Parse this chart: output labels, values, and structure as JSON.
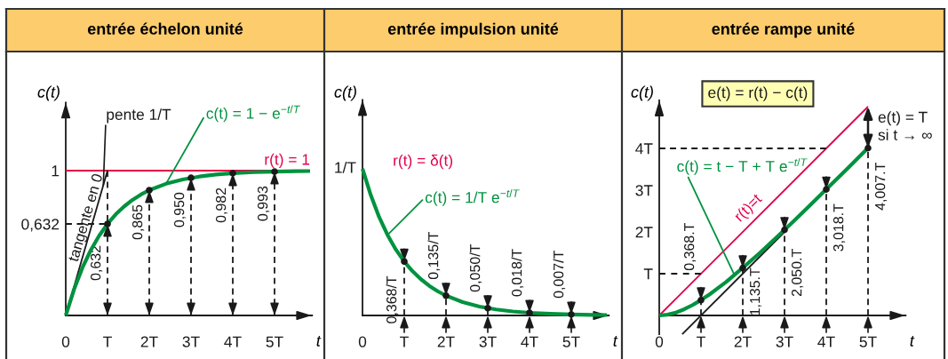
{
  "chart_data": [
    {
      "type": "line",
      "title": "entrée échelon unité",
      "xlabel": "t",
      "ylabel": "c(t)",
      "xlim": [
        0,
        5.9
      ],
      "ylim": [
        0,
        1.47
      ],
      "xticks": [
        0,
        {
          "value": 1,
          "label": "T"
        },
        {
          "value": 2,
          "label": "2T"
        },
        {
          "value": 3,
          "label": "3T"
        },
        {
          "value": 4,
          "label": "4T"
        },
        {
          "value": 5,
          "label": "5T"
        }
      ],
      "yticks": [
        {
          "value": 0.632,
          "label": "0,632"
        },
        1
      ],
      "series": [
        {
          "name": "c(t) = 1 − e$^{−t/T}$",
          "color": "#00923f",
          "x": [
            0,
            0.2,
            0.4,
            0.6,
            0.8,
            1,
            1.2,
            1.4,
            1.6,
            1.8,
            2,
            2.4,
            2.8,
            3.2,
            3.6,
            4,
            4.5,
            5,
            5.5,
            5.85
          ],
          "values": [
            0,
            0.181,
            0.33,
            0.451,
            0.551,
            0.632,
            0.699,
            0.753,
            0.798,
            0.835,
            0.865,
            0.909,
            0.939,
            0.959,
            0.973,
            0.982,
            0.989,
            0.993,
            0.996,
            0.997
          ]
        },
        {
          "name": "r(t) = 1",
          "color": "#e2004a",
          "x": [
            0,
            5.85
          ],
          "values": [
            1,
            1
          ]
        },
        {
          "name": "tangente en 0",
          "color": "#1a1a1a",
          "x": [
            0,
            1
          ],
          "values": [
            0,
            1
          ]
        },
        {
          "color": "#1a1a1a",
          "line_style": "dashed",
          "x": [
            0,
            1,
            1
          ],
          "values": [
            0.632,
            0.632,
            1
          ]
        },
        {
          "type": "lollipop",
          "color": "#1a1a1a",
          "marker": "circle",
          "line_style": "dashed",
          "x": [
            1,
            2,
            3,
            4,
            5
          ],
          "values": [
            0.632,
            0.865,
            0.95,
            0.982,
            0.993
          ],
          "value_labels": [
            "0,632",
            "0,865",
            "0,950",
            "0,982",
            "0,993"
          ]
        }
      ],
      "annotations": [
        {
          "text": "pente 1/T",
          "x": 0.9,
          "y": 0.9
        }
      ]
    },
    {
      "type": "line",
      "title": "entrée impulsion unité",
      "xlabel": "t",
      "ylabel": "c(t)",
      "xlim": [
        0,
        5.9
      ],
      "xticks": [
        0,
        {
          "value": 1,
          "label": "T"
        },
        {
          "value": 2,
          "label": "2T"
        },
        {
          "value": 3,
          "label": "3T"
        },
        {
          "value": 4,
          "label": "4T"
        },
        {
          "value": 5,
          "label": "5T"
        }
      ],
      "series": [
        {
          "name": "c(t) = 1/T e$^{−t/T}$",
          "color": "#00923f",
          "x": [
            0,
            0.2,
            0.4,
            0.6,
            0.8,
            1,
            1.2,
            1.4,
            1.6,
            1.8,
            2,
            2.4,
            2.8,
            3.2,
            3.6,
            4,
            4.5,
            5,
            5.5,
            5.85
          ],
          "values": [
            1,
            0.819,
            0.67,
            0.549,
            0.449,
            0.368,
            0.301,
            0.247,
            0.202,
            0.165,
            0.135,
            0.091,
            0.061,
            0.041,
            0.027,
            0.018,
            0.011,
            0.007,
            0.004,
            0.003
          ]
        },
        {
          "name": "r(t) = δ(t)",
          "color": "#e2004a"
        },
        {
          "type": "lollipop",
          "color": "#1a1a1a",
          "marker": "circle",
          "line_style": "dashed",
          "x": [
            1,
            2,
            3,
            4,
            5
          ],
          "values": [
            0.368,
            0.135,
            0.05,
            0.018,
            0.007
          ],
          "value_labels": [
            "0,368/T",
            "0,135/T",
            "0,050/T",
            "0,018/T",
            "0,007/T"
          ]
        }
      ],
      "annotations": [
        {
          "text": "1/T",
          "x": 0,
          "y": 1
        }
      ]
    },
    {
      "type": "line",
      "title": "entrée rampe unité",
      "xlabel": "t",
      "ylabel": "c(t)",
      "xlim": [
        0,
        5.9
      ],
      "ylim": [
        -0.45,
        5.15
      ],
      "xticks": [
        0,
        {
          "value": 1,
          "label": "T"
        },
        {
          "value": 2,
          "label": "2T"
        },
        {
          "value": 3,
          "label": "3T"
        },
        {
          "value": 4,
          "label": "4T"
        },
        {
          "value": 5,
          "label": "5T"
        }
      ],
      "yticks": [
        {
          "value": 1,
          "label": "T"
        },
        {
          "value": 2,
          "label": "2T"
        },
        {
          "value": 3,
          "label": "3T"
        },
        {
          "value": 4,
          "label": "4T"
        }
      ],
      "series": [
        {
          "name": "c(t) = t − T + T e$^{−t/T}$",
          "color": "#00923f",
          "x": [
            0,
            0.2,
            0.4,
            0.6,
            0.8,
            1,
            1.2,
            1.4,
            1.6,
            1.8,
            2,
            2.4,
            2.8,
            3.2,
            3.6,
            4,
            4.5,
            5
          ],
          "values": [
            0,
            0.02,
            0.07,
            0.15,
            0.25,
            0.37,
            0.5,
            0.65,
            0.8,
            0.97,
            1.14,
            1.49,
            1.86,
            2.24,
            2.63,
            3.02,
            3.51,
            4.01
          ]
        },
        {
          "name": "r(t)=t",
          "color": "#e2004a",
          "x": [
            0,
            5
          ],
          "values": [
            0,
            5
          ]
        },
        {
          "color": "#1a1a1a",
          "x": [
            0.55,
            3
          ],
          "values": [
            -0.45,
            2
          ]
        },
        {
          "color": "#1a1a1a",
          "line_style": "dashed",
          "x": [
            0,
            1
          ],
          "values": [
            1,
            1
          ]
        },
        {
          "color": "#1a1a1a",
          "line_style": "dashed",
          "x": [
            0,
            4
          ],
          "values": [
            4,
            4
          ]
        },
        {
          "type": "lollipop",
          "color": "#1a1a1a",
          "marker": "circle",
          "line_style": "dashed",
          "x": [
            1,
            2,
            3,
            4,
            5
          ],
          "values": [
            0.368,
            1.135,
            2.05,
            3.018,
            4.007
          ],
          "value_labels": [
            "0,368.T",
            "1,135.T",
            "2,050.T",
            "3,018.T",
            "4,007.T"
          ]
        }
      ],
      "annotations": [
        "e(t) = r(t) − c(t)",
        "e(t) = T\nsi t → ∞"
      ]
    }
  ]
}
